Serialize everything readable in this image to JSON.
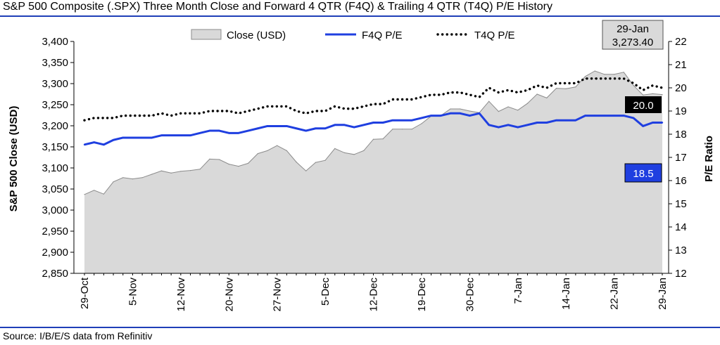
{
  "header": {
    "title": "S&P 500 Composite (.SPX) Three Month Close and Forward 4 QTR (F4Q) & Trailing 4 QTR (T4Q) P/E History"
  },
  "footer": {
    "source": "Source: I/B/E/S data from Refinitiv"
  },
  "colors": {
    "close_fill": "#d9d9d9",
    "close_stroke": "#8c8c8c",
    "f4q_line": "#1f3fe0",
    "t4q_dots": "#000000",
    "rule": "#1f3fb8"
  },
  "chart_data": {
    "type": "area",
    "ylabel": "S&P 500 Close (USD)",
    "y2label": "P/E Ratio",
    "ylim": [
      2850,
      3400
    ],
    "y2lim": [
      12,
      22
    ],
    "yticks": [
      "2,850",
      "2,900",
      "2,950",
      "3,000",
      "3,050",
      "3,100",
      "3,150",
      "3,200",
      "3,250",
      "3,300",
      "3,350",
      "3,400"
    ],
    "y2ticks": [
      "12",
      "13",
      "14",
      "15",
      "16",
      "17",
      "18",
      "19",
      "20",
      "21",
      "22"
    ],
    "xtick_labels": [
      "29-Oct",
      "5-Nov",
      "12-Nov",
      "20-Nov",
      "27-Nov",
      "5-Dec",
      "12-Dec",
      "19-Dec",
      "30-Dec",
      "7-Jan",
      "14-Jan",
      "22-Jan",
      "29-Jan"
    ],
    "xtick_index": [
      0,
      5,
      10,
      15,
      20,
      25,
      30,
      35,
      40,
      45,
      50,
      55,
      60
    ],
    "legend": {
      "position": "top",
      "items": [
        "Close (USD)",
        "F4Q P/E",
        "T4Q P/E"
      ]
    },
    "series": [
      {
        "name": "Close (USD)",
        "axis": "left",
        "kind": "area",
        "values": [
          3037,
          3047,
          3038,
          3067,
          3077,
          3074,
          3077,
          3085,
          3093,
          3088,
          3092,
          3094,
          3097,
          3121,
          3120,
          3109,
          3104,
          3111,
          3134,
          3141,
          3153,
          3141,
          3114,
          3093,
          3113,
          3118,
          3146,
          3136,
          3132,
          3141,
          3168,
          3169,
          3192,
          3192,
          3192,
          3205,
          3223,
          3224,
          3240,
          3240,
          3235,
          3231,
          3258,
          3234,
          3245,
          3237,
          3253,
          3275,
          3266,
          3289,
          3288,
          3292,
          3317,
          3330,
          3322,
          3322,
          3327,
          3296,
          3273,
          3276,
          3274
        ]
      },
      {
        "name": "F4Q P/E",
        "axis": "right",
        "kind": "line",
        "values": [
          17.55,
          17.65,
          17.55,
          17.75,
          17.85,
          17.85,
          17.85,
          17.85,
          17.95,
          17.95,
          17.95,
          17.95,
          18.05,
          18.15,
          18.15,
          18.05,
          18.05,
          18.15,
          18.25,
          18.35,
          18.35,
          18.35,
          18.25,
          18.15,
          18.25,
          18.25,
          18.4,
          18.4,
          18.3,
          18.4,
          18.5,
          18.5,
          18.6,
          18.6,
          18.6,
          18.7,
          18.8,
          18.8,
          18.9,
          18.9,
          18.8,
          18.9,
          18.4,
          18.3,
          18.4,
          18.3,
          18.4,
          18.5,
          18.5,
          18.6,
          18.6,
          18.6,
          18.8,
          18.8,
          18.8,
          18.8,
          18.8,
          18.7,
          18.35,
          18.5,
          18.5
        ]
      },
      {
        "name": "T4Q P/E",
        "axis": "right",
        "kind": "dotted",
        "values": [
          18.6,
          18.7,
          18.7,
          18.7,
          18.8,
          18.8,
          18.8,
          18.8,
          18.9,
          18.8,
          18.9,
          18.9,
          18.9,
          19.0,
          19.0,
          19.0,
          18.9,
          19.0,
          19.1,
          19.2,
          19.2,
          19.2,
          19.0,
          18.9,
          19.0,
          19.0,
          19.2,
          19.1,
          19.1,
          19.2,
          19.3,
          19.3,
          19.5,
          19.5,
          19.5,
          19.6,
          19.7,
          19.7,
          19.8,
          19.8,
          19.7,
          19.6,
          20.0,
          19.8,
          19.9,
          19.8,
          19.9,
          20.1,
          20.0,
          20.2,
          20.2,
          20.2,
          20.4,
          20.4,
          20.4,
          20.4,
          20.4,
          20.2,
          19.9,
          20.1,
          20.0
        ]
      }
    ],
    "annotations": {
      "close_date": "29-Jan",
      "close_value": "3,273.40",
      "t4q_last": "20.0",
      "f4q_last": "18.5"
    }
  }
}
